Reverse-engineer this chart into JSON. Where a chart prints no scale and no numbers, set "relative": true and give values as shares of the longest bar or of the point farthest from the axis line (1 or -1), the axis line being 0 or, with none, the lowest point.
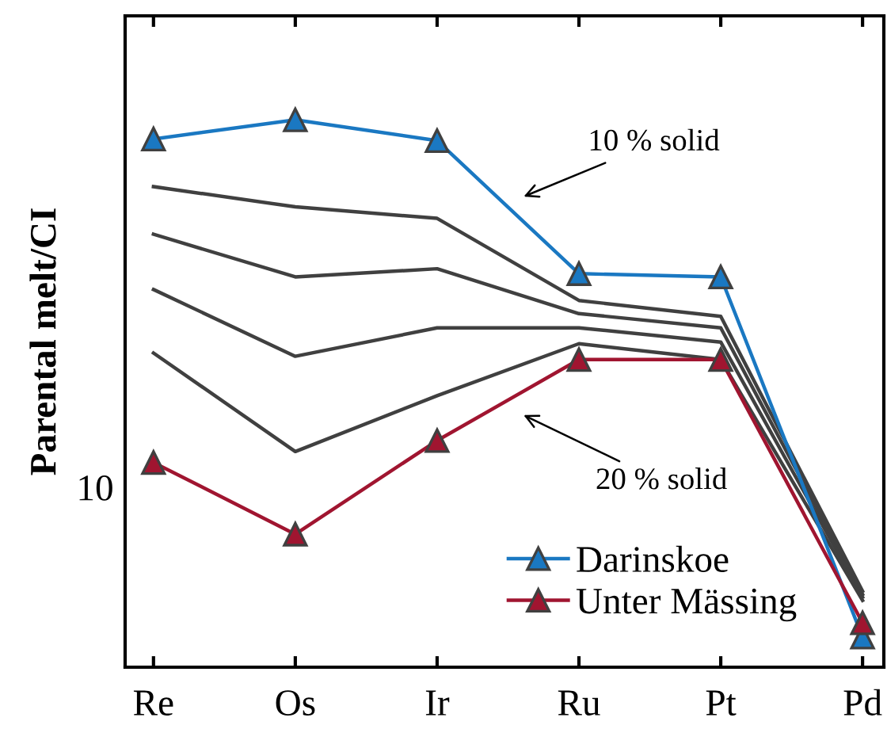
{
  "chart_data": {
    "type": "line",
    "relative": true,
    "ylabel": "Parental melt/CI",
    "categories": [
      "Re",
      "Os",
      "Ir",
      "Ru",
      "Pt",
      "Pd"
    ],
    "series": [
      {
        "color": "#404040",
        "values": [
          0.878,
          0.841,
          0.82,
          0.67,
          0.641,
          0.139
        ]
      },
      {
        "color": "#404040",
        "values": [
          0.791,
          0.713,
          0.728,
          0.646,
          0.62,
          0.133
        ]
      },
      {
        "color": "#404040",
        "values": [
          0.69,
          0.568,
          0.62,
          0.62,
          0.594,
          0.128
        ]
      },
      {
        "color": "#404040",
        "values": [
          0.574,
          0.394,
          0.496,
          0.591,
          0.562,
          0.122
        ]
      },
      {
        "name": "Darinskoe",
        "color": "#1a78c2",
        "marker": "triangle",
        "values": [
          0.965,
          1.0,
          0.962,
          0.719,
          0.713,
          0.055
        ]
      },
      {
        "name": "Unter Mässing",
        "color": "#a01530",
        "marker": "triangle",
        "values": [
          0.374,
          0.243,
          0.414,
          0.562,
          0.562,
          0.081
        ]
      }
    ],
    "annotations": [
      "10 % solid",
      "20 % solid",
      "10"
    ],
    "legend": "bottom right",
    "grid": false
  }
}
